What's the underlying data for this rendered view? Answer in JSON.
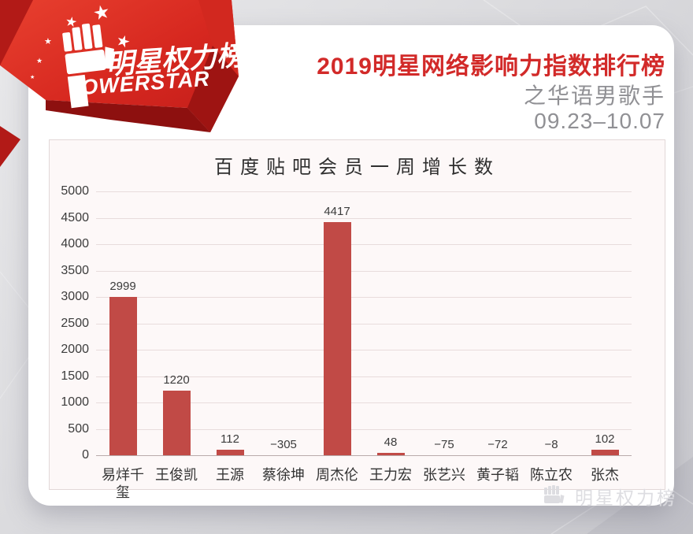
{
  "logo": {
    "brand_cn": "明星权力榜",
    "brand_en": "OWERSTAR"
  },
  "header": {
    "title": "2019明星网络影响力指数排行榜",
    "subtitle": "之华语男歌手",
    "date_range": "09.23–10.07"
  },
  "watermark": {
    "label": "明星权力榜"
  },
  "chart_data": {
    "type": "bar",
    "title": "百度贴吧会员一周增长数",
    "categories": [
      "易烊千玺",
      "王俊凯",
      "王源",
      "蔡徐坤",
      "周杰伦",
      "王力宏",
      "张艺兴",
      "黄子韬",
      "陈立农",
      "张杰"
    ],
    "values": [
      2999,
      1220,
      112,
      -305,
      4417,
      48,
      -75,
      -72,
      -8,
      102
    ],
    "xlabel": "",
    "ylabel": "",
    "ylim": [
      0,
      5000
    ],
    "ytick_step": 500,
    "grid": true,
    "legend": false,
    "value_labels": true,
    "bar_color": "#c14a46"
  },
  "colors": {
    "accent_red": "#d22a29",
    "bar": "#c14a46",
    "subtitle_gray": "#909094",
    "chart_bg": "#fdf8f8"
  }
}
